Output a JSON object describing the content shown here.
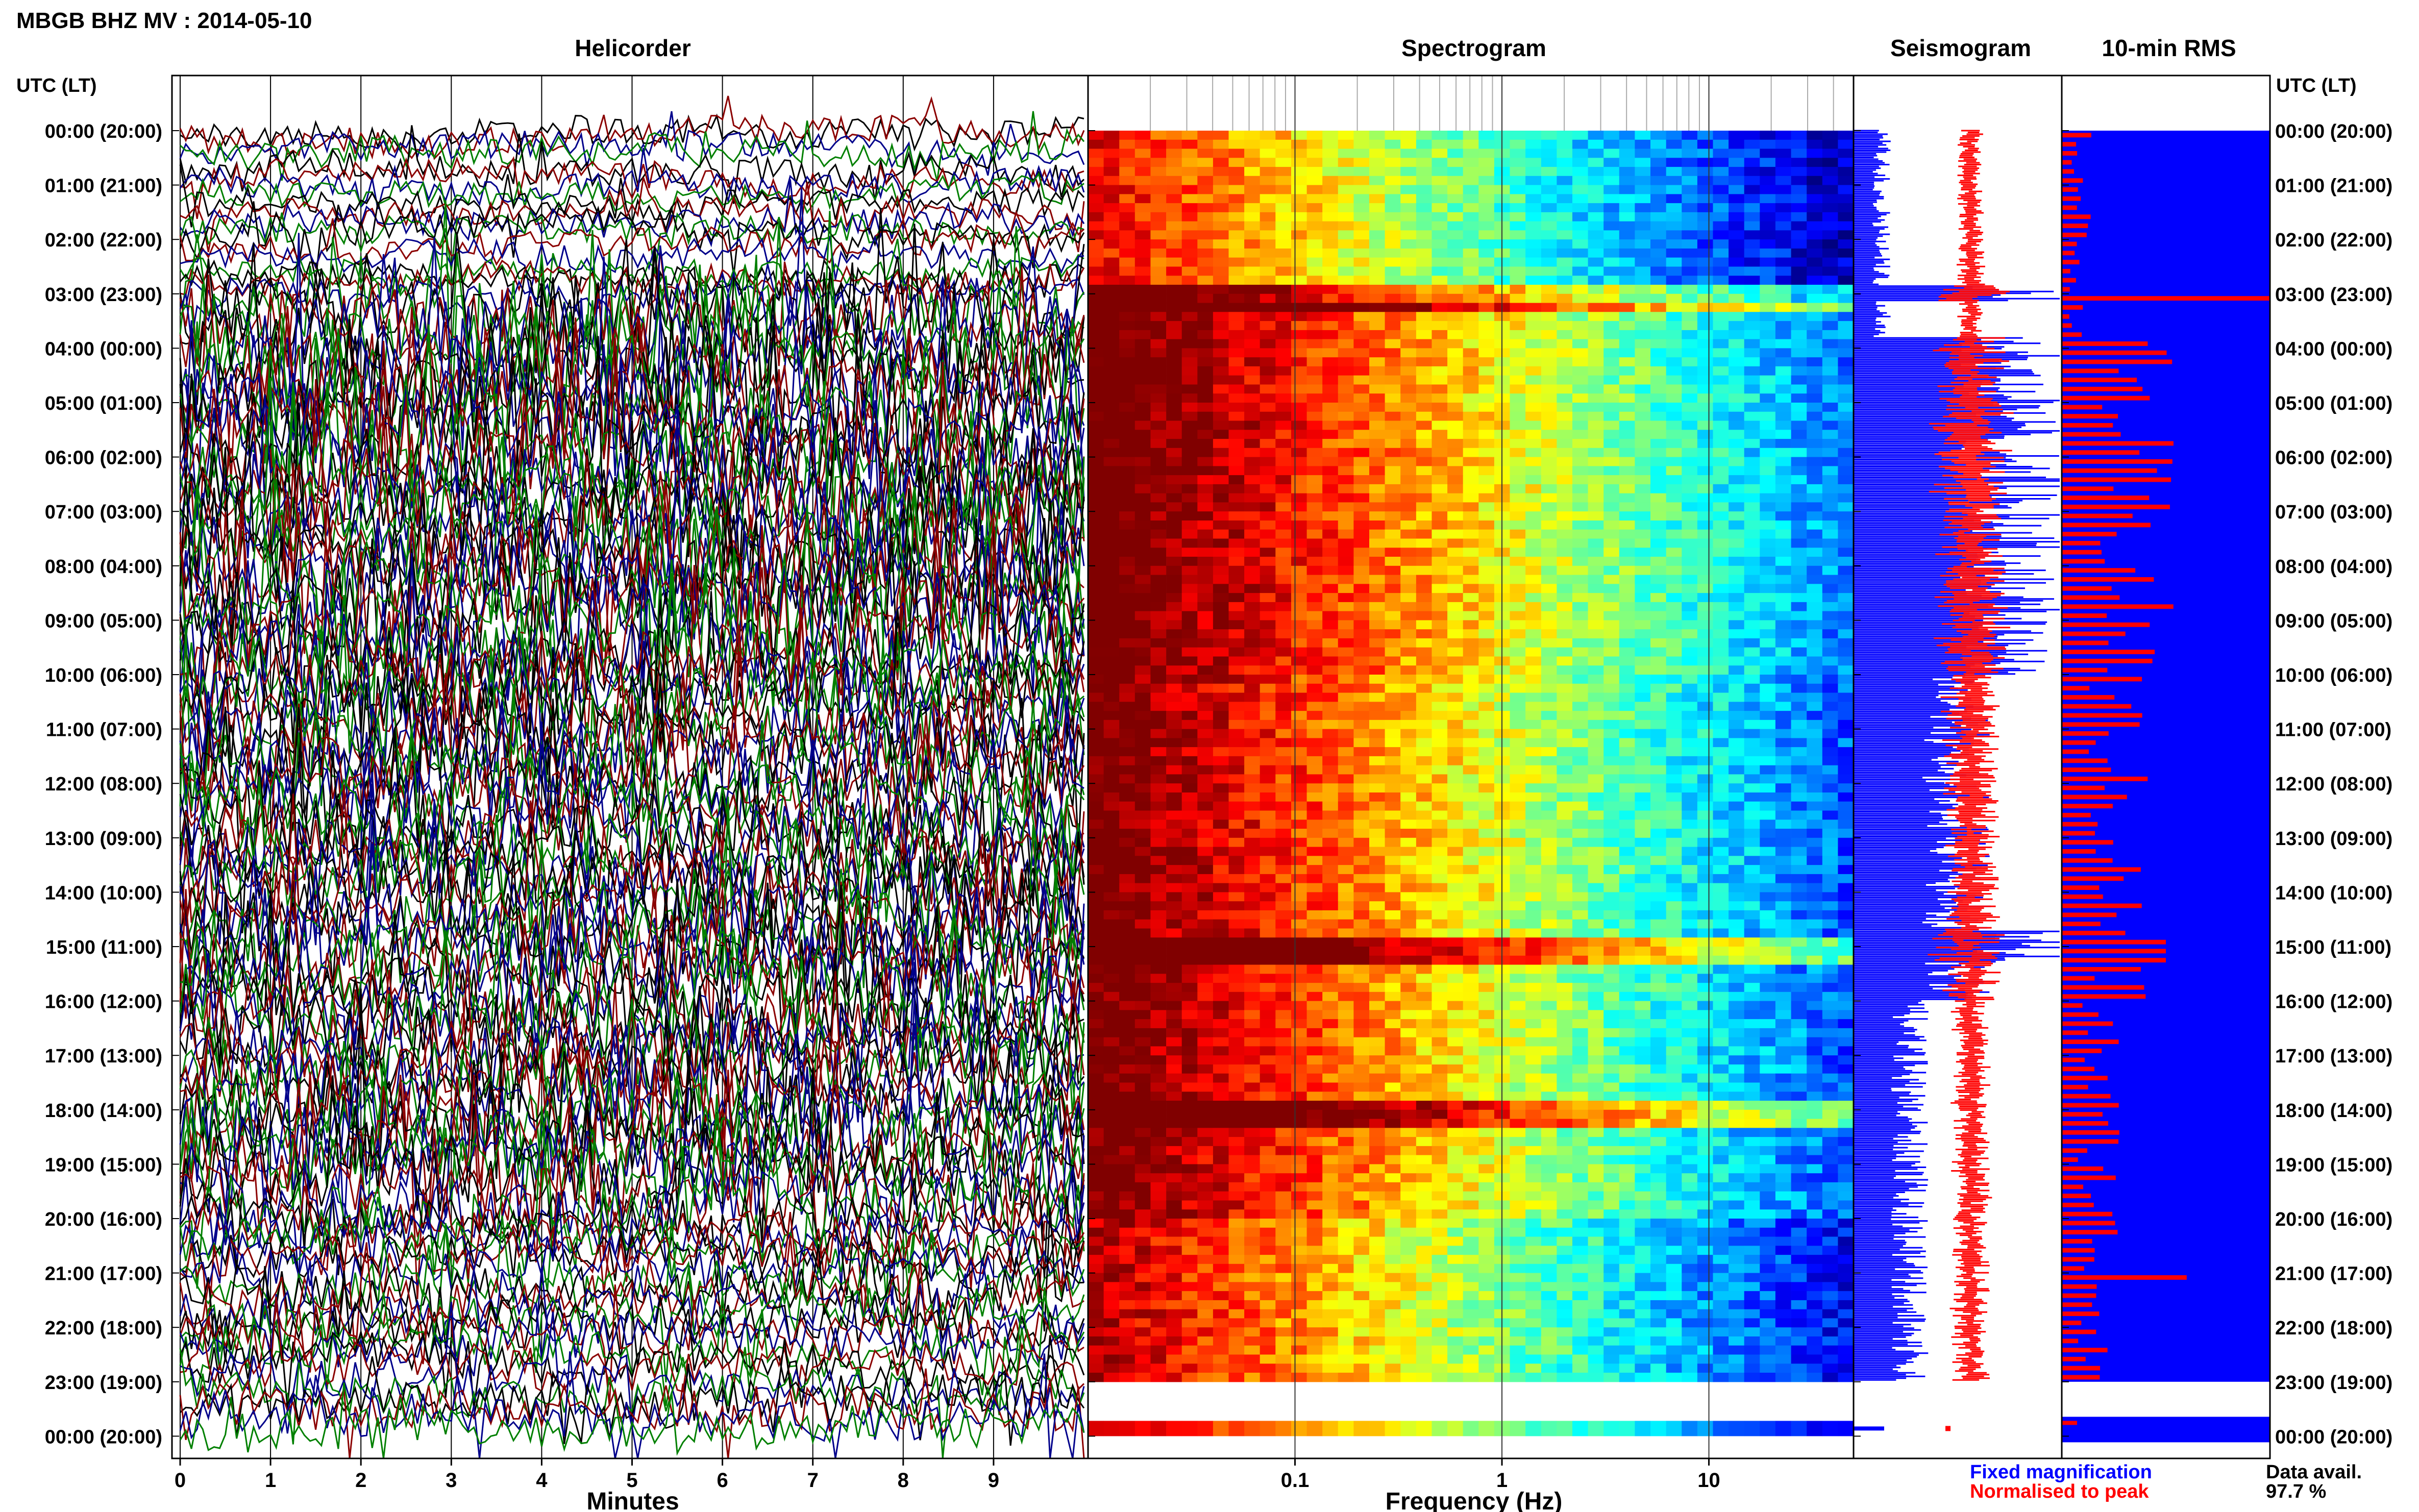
{
  "figure": {
    "title": "MBGB BHZ MV : 2014-05-10",
    "time_axis_label": "UTC (LT)",
    "data_availability_label": "Data avail.",
    "data_availability_value": "97.7 %",
    "data_availability_percent": 97.7
  },
  "legend": {
    "fixed_magnification": "Fixed magnification",
    "fixed_magnification_color": "#0000ff",
    "normalised_to_peak": "Normalised to peak",
    "normalised_to_peak_color": "#ff0000"
  },
  "chart_data": [
    {
      "type": "line",
      "title": "Helicorder",
      "xlabel": "Minutes",
      "x_ticks": [
        "0",
        "1",
        "2",
        "3",
        "4",
        "5",
        "6",
        "7",
        "8",
        "9"
      ],
      "xlim": [
        0,
        10
      ],
      "rows": [
        "00:00 (20:00)",
        "01:00 (21:00)",
        "02:00 (22:00)",
        "03:00 (23:00)",
        "04:00 (00:00)",
        "05:00 (01:00)",
        "06:00 (02:00)",
        "07:00 (03:00)",
        "08:00 (04:00)",
        "09:00 (05:00)",
        "10:00 (06:00)",
        "11:00 (07:00)",
        "12:00 (08:00)",
        "13:00 (09:00)",
        "14:00 (10:00)",
        "15:00 (11:00)",
        "16:00 (12:00)",
        "17:00 (13:00)",
        "18:00 (14:00)",
        "19:00 (15:00)",
        "20:00 (16:00)",
        "21:00 (17:00)",
        "22:00 (18:00)",
        "23:00 (19:00)",
        "00:00 (20:00)"
      ],
      "trace_colors": [
        "#000000",
        "#8b0000",
        "#00008b",
        "#008000"
      ]
    },
    {
      "type": "heatmap",
      "title": "Spectrogram",
      "xlabel": "Frequency (Hz)",
      "x_scale": "log",
      "xlim": [
        0.01,
        50
      ],
      "x_ticks": [
        "0.1",
        "1",
        "10"
      ],
      "colormap": "jet",
      "gap_rows": [
        "23:00 (19:00)"
      ]
    },
    {
      "type": "line",
      "title": "Seismogram",
      "series": [
        {
          "name": "Fixed magnification",
          "color": "#0000ff"
        },
        {
          "name": "Normalised to peak",
          "color": "#ff0000"
        }
      ]
    },
    {
      "type": "bar",
      "title": "10-min RMS",
      "orientation": "horizontal",
      "bar_color": "#ff0000",
      "background_color": "#0000ff",
      "rows_per_hour": 6,
      "peak_rows": [
        "03:00 (23:00)",
        "05:00 (01:00)",
        "15:00 (11:00)",
        "21:00 (17:00)"
      ]
    }
  ]
}
